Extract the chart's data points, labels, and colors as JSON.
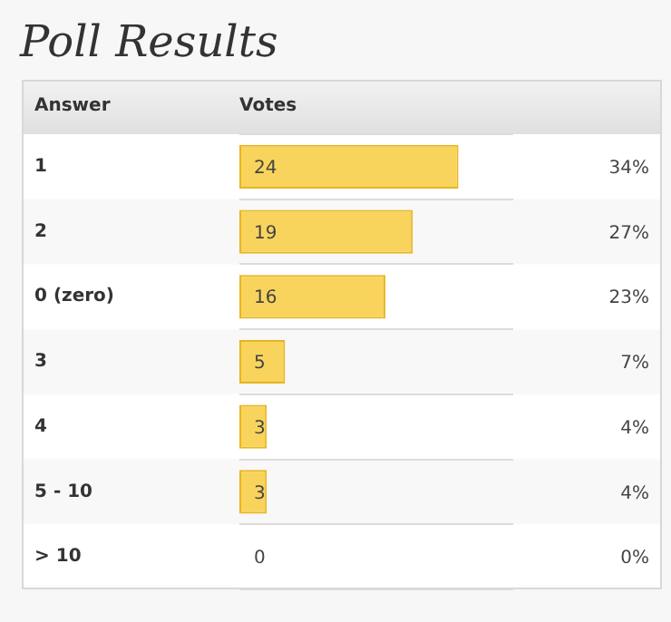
{
  "chart_data": {
    "type": "bar",
    "orientation": "horizontal",
    "title": "Poll Results",
    "xlabel": "Votes",
    "ylabel": "Answer",
    "categories": [
      "1",
      "2",
      "0 (zero)",
      "3",
      "4",
      "5 - 10",
      "> 10"
    ],
    "values": [
      24,
      19,
      16,
      5,
      3,
      3,
      0
    ],
    "color": "#f8d45c",
    "data_labels": true,
    "grid": "y",
    "tick_labels": "y",
    "legend": false,
    "annotations": [
      "34%",
      "27%",
      "23%",
      "7%",
      "4%",
      "4%",
      "0%"
    ]
  }
}
